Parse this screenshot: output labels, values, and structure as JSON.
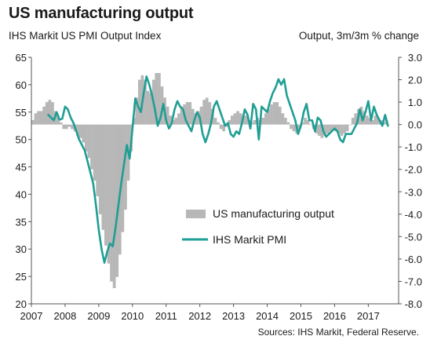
{
  "chart_data": {
    "type": "bar+line",
    "title": "US manufacturing output",
    "left_axis_title": "IHS Markit US PMI Output  Index",
    "right_axis_title": "Output,  3m/3m  % change",
    "source": "Sources: IHS Markit, Federal Reserve.",
    "left_axis": {
      "min": 20,
      "max": 65,
      "ticks": [
        20,
        25,
        30,
        35,
        40,
        45,
        50,
        55,
        60,
        65
      ],
      "labels": [
        "20",
        "25",
        "30",
        "35",
        "40",
        "45",
        "50",
        "55",
        "60",
        "65"
      ]
    },
    "right_axis": {
      "min": -8,
      "max": 3,
      "ticks": [
        3,
        2,
        1,
        0,
        -1,
        -2,
        -3,
        -4,
        -5,
        -6,
        -7,
        -8
      ],
      "labels": [
        "3.0",
        "2.0",
        "1.0",
        "0.0",
        "-1.0",
        "-2.0",
        "-3.0",
        "-4.0",
        "-5.0",
        "-6.0",
        "-7.0",
        "-8.0"
      ]
    },
    "x_axis": {
      "start": 2007.0,
      "end": 2017.9,
      "ticks": [
        2007,
        2008,
        2009,
        2010,
        2011,
        2012,
        2013,
        2014,
        2015,
        2016,
        2017
      ],
      "labels": [
        "2007",
        "2008",
        "2009",
        "2010",
        "2011",
        "2012",
        "2013",
        "2014",
        "2015",
        "2016",
        "2017"
      ]
    },
    "legend": {
      "position": "center-right",
      "entries": [
        "US manufacturing output",
        "IHS Markit PMI"
      ]
    },
    "series": [
      {
        "name": "US manufacturing output",
        "kind": "bar",
        "axis": "right",
        "color": "#b7b7b7",
        "start": 2007.0,
        "step": 0.0833333,
        "values": [
          0.2,
          0.5,
          0.6,
          0.6,
          0.8,
          1.0,
          1.1,
          1.0,
          0.6,
          0.4,
          0.1,
          -0.2,
          -0.2,
          -0.1,
          -0.2,
          -0.3,
          -0.5,
          -0.6,
          -0.8,
          -1.2,
          -1.5,
          -2.0,
          -2.5,
          -3.2,
          -4.0,
          -4.7,
          -5.4,
          -6.2,
          -7.0,
          -7.3,
          -6.8,
          -5.8,
          -4.8,
          -3.8,
          -2.5,
          -1.2,
          0.3,
          1.2,
          2.0,
          2.2,
          2.0,
          1.5,
          1.4,
          2.0,
          2.3,
          2.3,
          1.7,
          1.2,
          0.8,
          0.4,
          0.2,
          0.3,
          0.5,
          0.8,
          0.9,
          1.0,
          1.0,
          0.7,
          0.5,
          0.6,
          0.8,
          1.1,
          1.2,
          1.0,
          0.7,
          0.3,
          0.1,
          -0.2,
          -0.3,
          -0.1,
          0.2,
          0.4,
          0.5,
          0.6,
          0.5,
          0.4,
          0.4,
          0.2,
          0.1,
          0.2,
          0.3,
          0.2,
          0.3,
          0.5,
          0.7,
          0.9,
          1.0,
          1.0,
          0.8,
          0.5,
          0.3,
          0.1,
          -0.2,
          -0.3,
          -0.4,
          -0.2,
          0.1,
          0.3,
          0.2,
          0.0,
          -0.2,
          -0.4,
          -0.5,
          -0.6,
          -0.5,
          -0.4,
          -0.3,
          -0.2,
          -0.3,
          -0.4,
          -0.5,
          -0.4,
          -0.3,
          0.0,
          0.3,
          0.5,
          0.7,
          0.8,
          0.6,
          0.4,
          0.3,
          0.2,
          0.4,
          0.3,
          0.2,
          0.1,
          0.2
        ]
      },
      {
        "name": "IHS Markit PMI",
        "kind": "line",
        "axis": "left",
        "color": "#1f9e94",
        "start": 2007.5,
        "step": 0.0833333,
        "values": [
          54.5,
          54.0,
          53.5,
          55.0,
          53.6,
          53.8,
          56.0,
          55.5,
          54.0,
          53.0,
          51.5,
          50.0,
          49.0,
          48.0,
          46.0,
          44.0,
          42.0,
          38.0,
          33.5,
          30.0,
          27.5,
          29.5,
          31.0,
          30.5,
          34.0,
          38.0,
          42.0,
          45.5,
          49.0,
          46.5,
          52.0,
          57.5,
          56.0,
          55.0,
          58.5,
          61.5,
          60.0,
          58.0,
          55.5,
          52.5,
          54.0,
          56.5,
          53.5,
          52.0,
          53.0,
          55.5,
          57.0,
          56.0,
          55.5,
          53.5,
          52.5,
          51.5,
          53.5,
          55.0,
          54.0,
          51.0,
          49.5,
          51.0,
          53.0,
          56.0,
          57.0,
          55.5,
          54.0,
          52.5,
          53.0,
          51.0,
          50.5,
          51.5,
          51.0,
          53.0,
          55.5,
          54.5,
          52.0,
          56.5,
          55.5,
          50.0,
          56.0,
          55.5,
          55.0,
          57.0,
          58.5,
          59.5,
          61.0,
          60.0,
          61.0,
          58.0,
          56.5,
          55.0,
          53.5,
          51.0,
          52.5,
          55.0,
          56.5,
          53.5,
          53.5,
          51.5,
          54.0,
          53.5,
          51.5,
          50.5,
          51.0,
          51.5,
          52.0,
          51.5,
          50.0,
          49.5,
          51.0,
          51.0,
          51.0,
          52.0,
          53.0,
          55.5,
          53.5,
          55.0,
          57.0,
          53.5,
          56.0,
          54.5,
          53.5,
          52.5,
          54.5,
          52.5
        ]
      }
    ]
  }
}
